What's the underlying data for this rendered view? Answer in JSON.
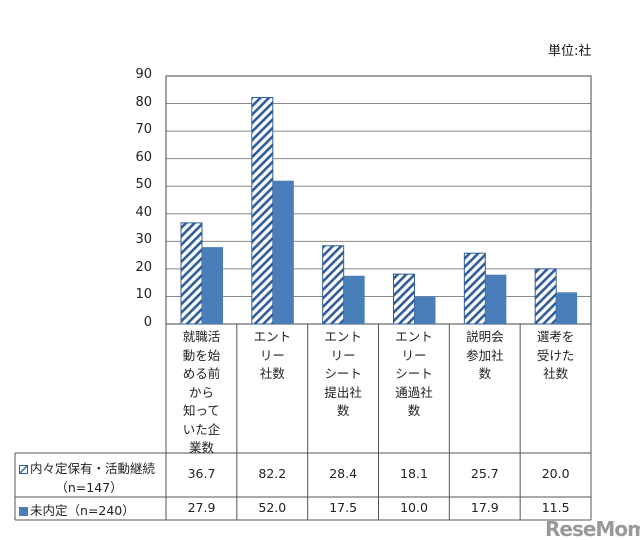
{
  "chart_data": {
    "type": "bar",
    "unit_label": "単位:社",
    "categories": [
      "就職活\n動を始\nめる前\nから\n知って\nいた企\n業数",
      "エント\nリー\n社数",
      "エント\nリー\nシート\n提出社\n数",
      "エント\nリー\nシート\n通過社\n数",
      "説明会\n参加社\n数",
      "選考を\n受けた\n社数"
    ],
    "series": [
      {
        "name": "内々定保有・活動継続",
        "name_sub": "（n=147）",
        "values": [
          36.7,
          82.2,
          28.4,
          18.1,
          25.7,
          20.0
        ],
        "value_labels": [
          "36.7",
          "82.2",
          "28.4",
          "18.1",
          "25.7",
          "20.0"
        ],
        "color": "#4a7ebb",
        "pattern": "hatched"
      },
      {
        "name": "未内定（n=240）",
        "values": [
          27.9,
          52.0,
          17.5,
          10.0,
          17.9,
          11.5
        ],
        "value_labels": [
          "27.9",
          "52.0",
          "17.5",
          "10.0",
          "17.9",
          "11.5"
        ],
        "color": "#4a7ebb",
        "pattern": "solid"
      }
    ],
    "yticks": [
      "0",
      "10",
      "20",
      "30",
      "40",
      "50",
      "60",
      "70",
      "80",
      "90"
    ],
    "ylim": [
      0,
      90
    ],
    "grid": true,
    "legend": "data-table"
  },
  "watermark": "ReseMom"
}
